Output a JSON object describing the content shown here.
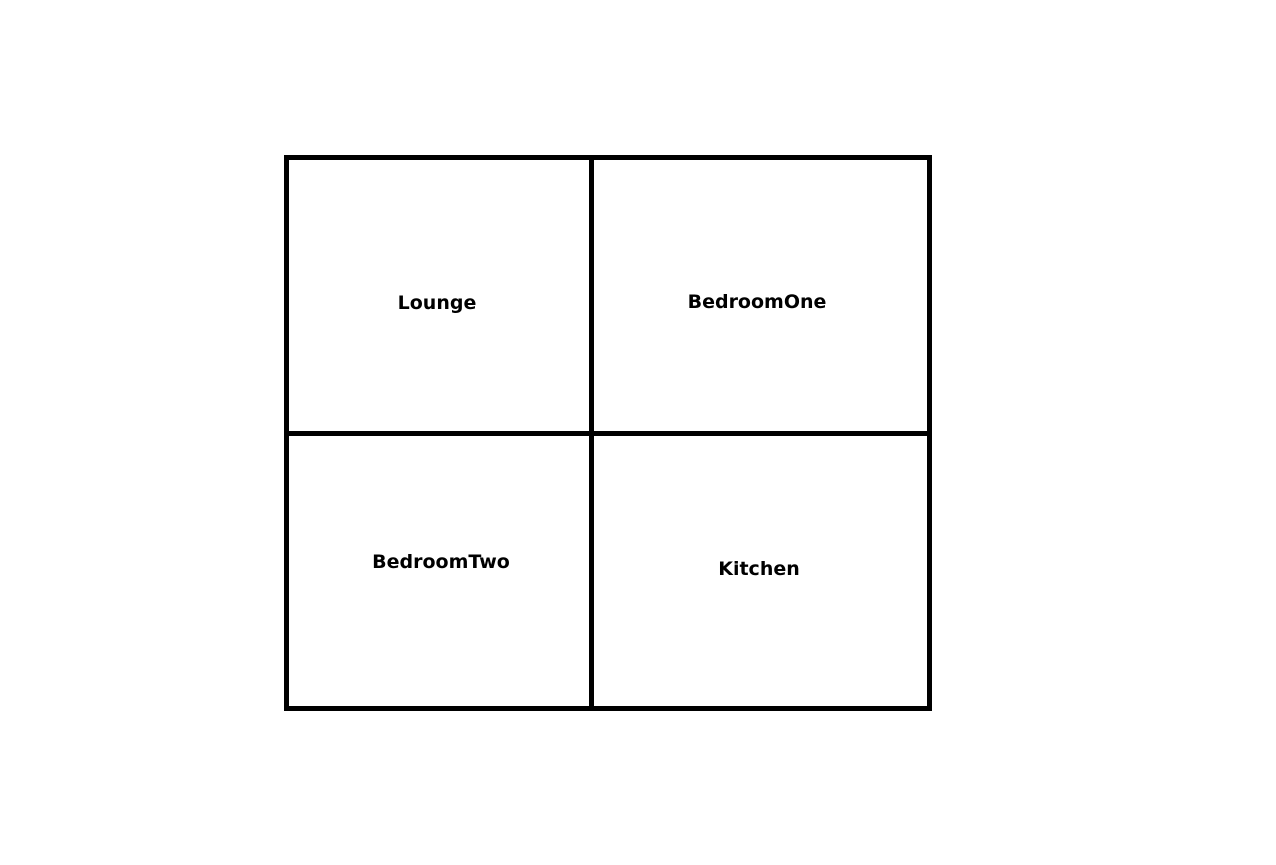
{
  "floor_plan": {
    "rooms": [
      {
        "name": "Lounge"
      },
      {
        "name": "BedroomOne"
      },
      {
        "name": "BedroomTwo"
      },
      {
        "name": "Kitchen"
      }
    ],
    "wall_color": "#000000",
    "background_color": "#ffffff"
  }
}
